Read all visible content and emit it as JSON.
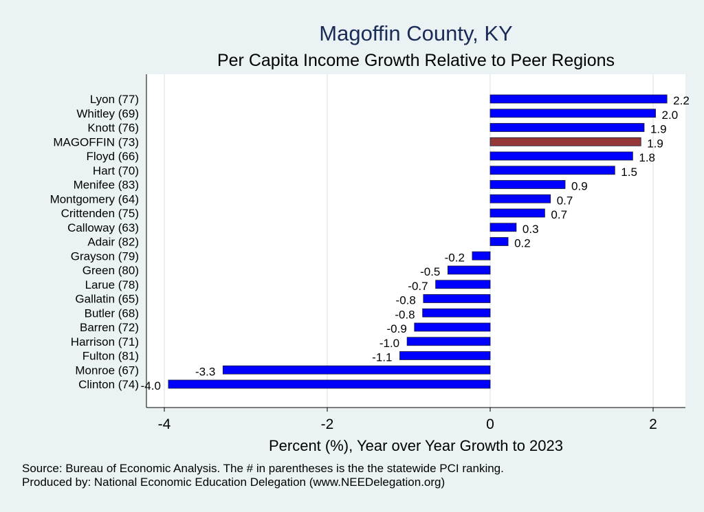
{
  "chart_data": {
    "type": "bar",
    "orientation": "horizontal",
    "title": "Magoffin County, KY",
    "subtitle": "Per Capita Income Growth Relative to Peer Regions",
    "xlabel": "Percent (%), Year over Year Growth to 2023",
    "ylabel": "",
    "xlim": [
      -4.2,
      2.4
    ],
    "xticks": [
      -4,
      -2,
      0,
      2
    ],
    "xtick_labels": [
      "-4",
      "-2",
      "0",
      "2"
    ],
    "grid": true,
    "categories": [
      "Lyon (77)",
      "Whitley (69)",
      "Knott (76)",
      "MAGOFFIN (73)",
      "Floyd (66)",
      "Hart (70)",
      "Menifee (83)",
      "Montgomery (64)",
      "Crittenden (75)",
      "Calloway (63)",
      "Adair (82)",
      "Grayson (79)",
      "Green (80)",
      "Larue (78)",
      "Gallatin (65)",
      "Butler (68)",
      "Barren (72)",
      "Harrison (71)",
      "Fulton (81)",
      "Monroe (67)",
      "Clinton (74)"
    ],
    "values": [
      2.17,
      2.03,
      1.89,
      1.85,
      1.75,
      1.53,
      0.92,
      0.74,
      0.67,
      0.32,
      0.22,
      -0.22,
      -0.52,
      -0.67,
      -0.82,
      -0.83,
      -0.93,
      -1.02,
      -1.11,
      -3.28,
      -3.95
    ],
    "value_labels": [
      "2.2",
      "2.0",
      "1.9",
      "1.9",
      "1.8",
      "1.5",
      "0.9",
      "0.7",
      "0.7",
      "0.3",
      "0.2",
      "-0.2",
      "-0.5",
      "-0.7",
      "-0.8",
      "-0.8",
      "-0.9",
      "-1.0",
      "-1.1",
      "-3.3",
      "-4.0"
    ],
    "highlight_index": 3,
    "colors": {
      "bar": "#0000ff",
      "highlight": "#943838",
      "title": "#1a2b57",
      "plot_bg": "#ffffff",
      "page_bg": "#eaf2f3"
    }
  },
  "footer": {
    "source": "Source: Bureau of Economic Analysis. The # in parentheses is the the statewide PCI ranking.",
    "producer": "Produced by: National Economic Education Delegation (www.NEEDelegation.org)"
  }
}
